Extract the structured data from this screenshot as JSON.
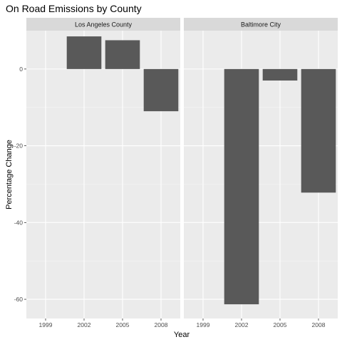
{
  "chart_data": {
    "type": "bar",
    "title": "On Road Emissions by County",
    "xlabel": "Year",
    "ylabel": "Percentage Change",
    "ylim": [
      -65,
      10
    ],
    "yticks": [
      0,
      -20,
      -40,
      -60
    ],
    "categories": [
      "1999",
      "2002",
      "2005",
      "2008"
    ],
    "grid": true,
    "facets": [
      {
        "name": "Los Angeles County",
        "values": [
          0,
          8.5,
          7.5,
          -11
        ]
      },
      {
        "name": "Baltimore City",
        "values": [
          0,
          -61.3,
          -3,
          -32.2
        ]
      }
    ]
  },
  "colors": {
    "bar": "#595959",
    "panel": "#ebebeb",
    "strip": "#d9d9d9",
    "grid_major": "#ffffff",
    "grid_minor": "#f5f5f5",
    "tick": "#333333"
  }
}
